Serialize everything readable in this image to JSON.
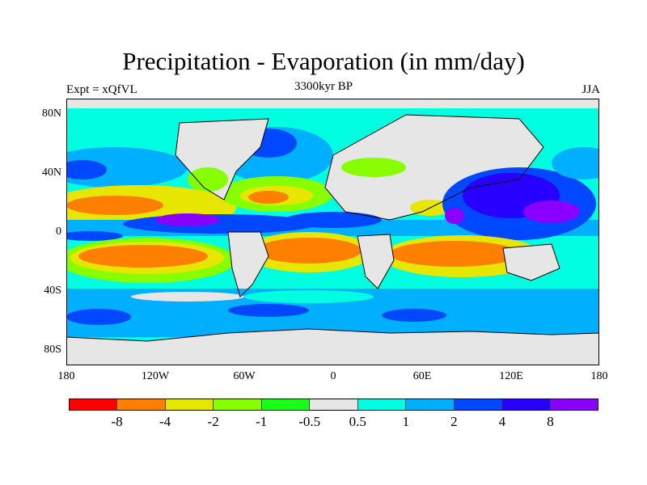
{
  "title": "Precipitation - Evaporation (in mm/day)",
  "left_string": "Expt = xQfVL",
  "center_string": "3300kyr BP",
  "right_string": "JJA",
  "lat_labels": [
    "80N",
    "40N",
    "0",
    "40S",
    "80S"
  ],
  "lon_labels": [
    "180",
    "120W",
    "60W",
    "0",
    "60E",
    "120E",
    "180"
  ],
  "colorbar": {
    "colors": [
      "#ff0000",
      "#ff8000",
      "#e6e600",
      "#88ff00",
      "#18ff18",
      "#e6e6e6",
      "#00ffe0",
      "#00b0ff",
      "#0048ff",
      "#2800ff",
      "#8a00ff"
    ],
    "labels": [
      "-8",
      "-4",
      "-2",
      "-1",
      "-0.5",
      "0.5",
      "1",
      "2",
      "4",
      "8"
    ]
  }
}
